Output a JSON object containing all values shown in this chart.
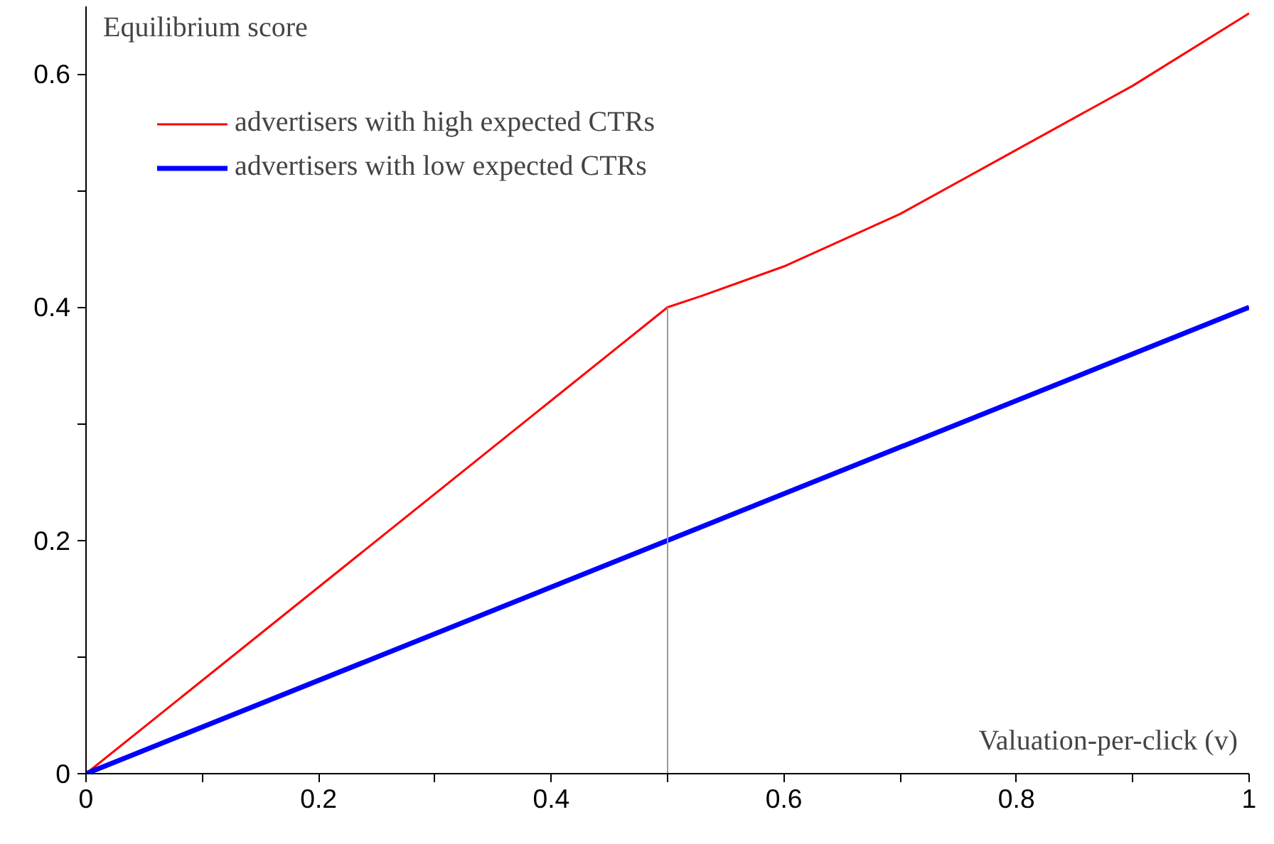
{
  "chart_data": {
    "type": "line",
    "xlabel": "Valuation-per-click (v)",
    "ylabel": "Equilibrium score",
    "xlim": [
      0,
      1
    ],
    "ylim": [
      0,
      0.658
    ],
    "xticks": [
      0,
      {
        "value": 0.1,
        "label": null
      },
      0.2,
      {
        "value": 0.3,
        "label": null
      },
      0.4,
      {
        "value": 0.5,
        "label": null
      },
      0.6,
      {
        "value": 0.7,
        "label": null
      },
      0.8,
      {
        "value": 0.9,
        "label": null
      },
      1
    ],
    "yticks": [
      0,
      {
        "value": 0.1,
        "label": null
      },
      0.2,
      {
        "value": 0.3,
        "label": null
      },
      0.4,
      {
        "value": 0.5,
        "label": null
      },
      0.6
    ],
    "series": [
      {
        "name": "advertisers with high expected CTRs",
        "color": "#ff0000",
        "x": [
          0,
          0.5,
          0.53,
          0.6,
          0.7,
          0.8,
          0.9,
          1.0
        ],
        "values": [
          0,
          0.4,
          0.41,
          0.435,
          0.48,
          0.535,
          0.59,
          0.652
        ]
      },
      {
        "name": "advertisers with low expected CTRs",
        "color": "#0000ff",
        "x": [
          0,
          1
        ],
        "values": [
          0,
          0.4
        ]
      },
      {
        "color": "#999999",
        "x": [
          0.5,
          0.5
        ],
        "values": [
          0,
          0.4
        ]
      }
    ],
    "legend": "top left",
    "grid": false
  }
}
